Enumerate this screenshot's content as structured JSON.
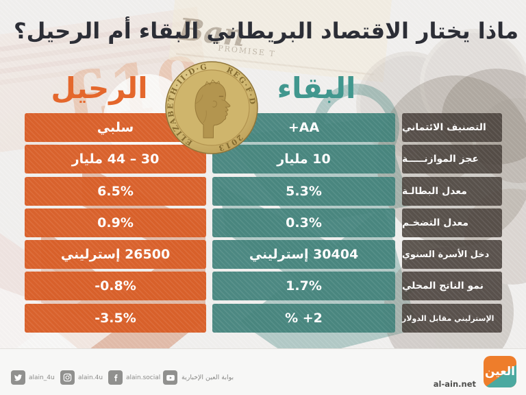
{
  "title": "ماذا يختار الاقتصاد البريطاني البقاء أم الرحيل؟",
  "columns": {
    "leave": {
      "header": "الرحيل",
      "color": "#e4672c"
    },
    "stay": {
      "header": "البقاء",
      "color": "#41978e"
    }
  },
  "coin": {
    "edge_text_left": "ELIZABETH·II·D·G",
    "edge_text_right": "REG·F·D",
    "year": "2013"
  },
  "background": {
    "banknote_left_text": "£10",
    "banknote_right_text": "Ban",
    "banknote_right_subtext": "PROMISE T"
  },
  "colors": {
    "leave_bar": "#d85a22",
    "stay_bar": "#45857d",
    "label_bar": "#57504a",
    "title_text": "#2c2e36",
    "page_background": "#f1f0ef",
    "footer_background": "#f7f7f6",
    "logo_orange": "#ee7d2b",
    "logo_teal": "#4ba9a0"
  },
  "rows": [
    {
      "label": "التصنيف الائتماني",
      "stay": "AA+",
      "leave": "سلبي"
    },
    {
      "label": "عجز الموازنـــــة",
      "stay": "10 مليار",
      "leave": "30 – 44 مليار"
    },
    {
      "label": "معدل البطالـة",
      "stay": "5.3%",
      "leave": "6.5%"
    },
    {
      "label": "معدل التضخـم",
      "stay": "0.3%",
      "leave": "0.9%"
    },
    {
      "label": "دخل الأسرة السنوي",
      "stay": "30404 إسترليني",
      "leave": "26500 إسترليني"
    },
    {
      "label": "نمو الناتج المحلي",
      "stay": "1.7%",
      "leave": "-0.8%"
    },
    {
      "label": "الإسترليني مقابل الدولار",
      "stay": "2+ %",
      "leave": "-3.5%"
    }
  ],
  "footer": {
    "social": [
      {
        "icon": "twitter",
        "label": "alain_4u"
      },
      {
        "icon": "instagram",
        "label": "alain.4u"
      },
      {
        "icon": "facebook",
        "label": "alain.social"
      },
      {
        "icon": "youtube",
        "label": "بوابة العين الإخبارية"
      }
    ],
    "website": "al-ain.net",
    "logo_text": "العين"
  }
}
